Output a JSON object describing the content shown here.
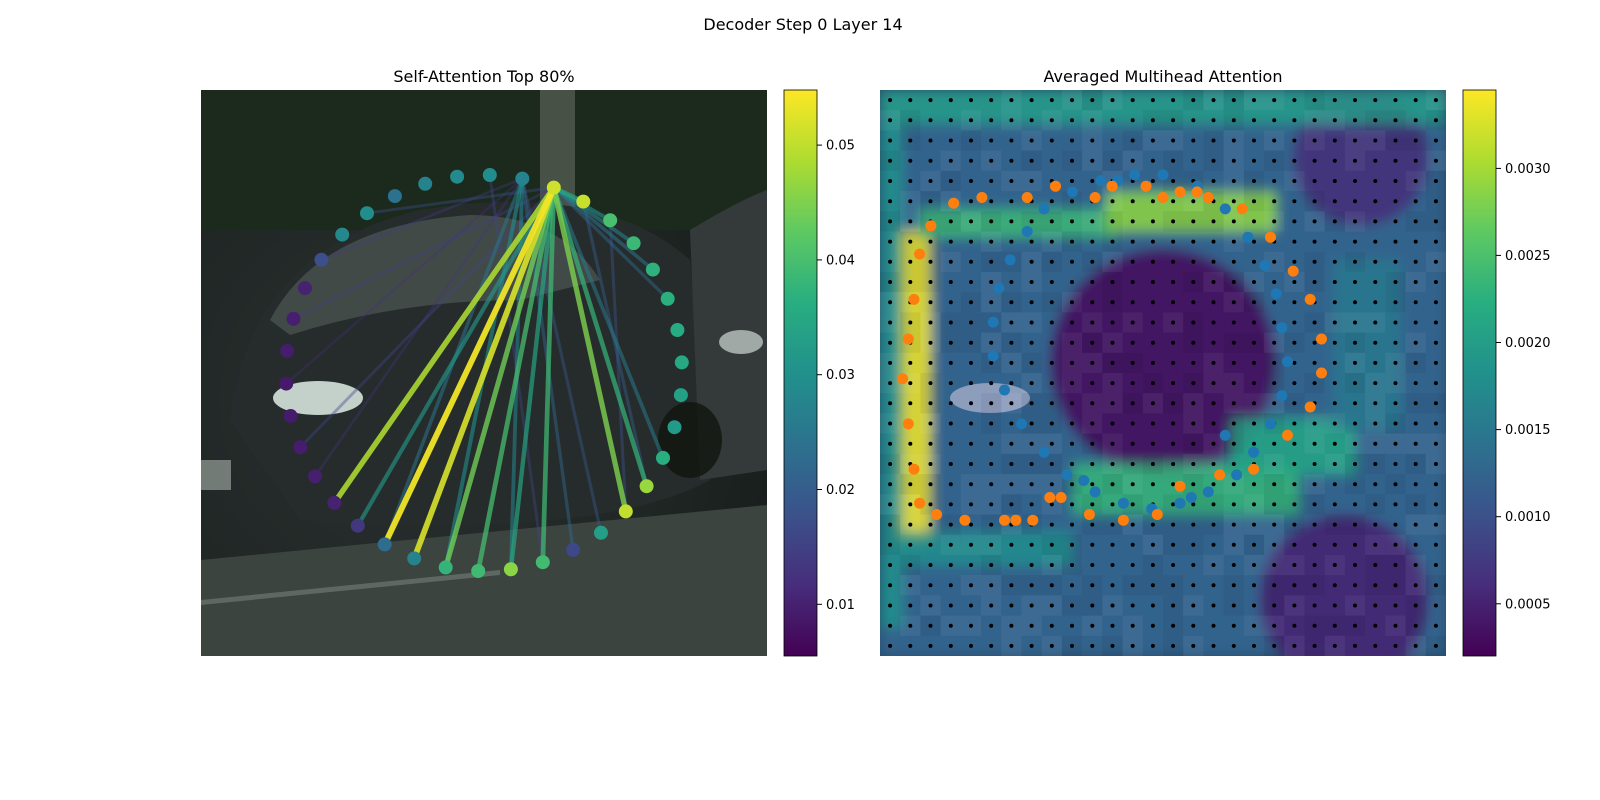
{
  "figure": {
    "suptitle": "Decoder Step 0 Layer 14"
  },
  "chart_data": [
    {
      "type": "scatter",
      "title": "Self-Attention Top 80%",
      "colormap": "viridis",
      "colorbar": {
        "range": [
          0.0055,
          0.0548
        ],
        "ticks": [
          0.01,
          0.02,
          0.03,
          0.04,
          0.05
        ],
        "tick_labels": [
          "0.01",
          "0.02",
          "0.03",
          "0.04",
          "0.05"
        ]
      },
      "background": "dark street photo with a parked car",
      "ring_points": {
        "center": [
          0.5,
          0.5
        ],
        "values": [
          0.0512,
          0.0508,
          0.0402,
          0.0386,
          0.0372,
          0.0368,
          0.0358,
          0.0352,
          0.0336,
          0.0322,
          0.0365,
          0.0472,
          0.0505,
          0.0332,
          0.0162,
          0.0395,
          0.0462,
          0.0392,
          0.0378,
          0.0275,
          0.0232,
          0.0135,
          0.0102,
          0.0098,
          0.0095,
          0.0092,
          0.009,
          0.0095,
          0.0098,
          0.0102,
          0.0175,
          0.0285,
          0.0295,
          0.024,
          0.0275,
          0.029,
          0.0295,
          0.0275
        ]
      },
      "attention_lines": [
        {
          "from": 0,
          "to": 22,
          "weight": 0.049
        },
        {
          "from": 0,
          "to": 20,
          "weight": 0.054
        },
        {
          "from": 0,
          "to": 19,
          "weight": 0.052
        },
        {
          "from": 0,
          "to": 15,
          "weight": 0.039
        },
        {
          "from": 0,
          "to": 18,
          "weight": 0.044
        },
        {
          "from": 0,
          "to": 17,
          "weight": 0.04
        },
        {
          "from": 0,
          "to": 12,
          "weight": 0.045
        },
        {
          "from": 0,
          "to": 11,
          "weight": 0.038
        },
        {
          "from": 0,
          "to": 16,
          "weight": 0.035
        },
        {
          "from": 0,
          "to": 21,
          "weight": 0.032
        },
        {
          "from": 0,
          "to": 1,
          "weight": 0.036
        },
        {
          "from": 0,
          "to": 2,
          "weight": 0.03
        },
        {
          "from": 0,
          "to": 3,
          "weight": 0.028
        },
        {
          "from": 0,
          "to": 4,
          "weight": 0.025
        },
        {
          "from": 0,
          "to": 5,
          "weight": 0.022
        },
        {
          "from": 0,
          "to": 10,
          "weight": 0.026
        },
        {
          "from": 37,
          "to": 18,
          "weight": 0.03
        },
        {
          "from": 37,
          "to": 16,
          "weight": 0.028
        },
        {
          "from": 37,
          "to": 20,
          "weight": 0.025
        },
        {
          "from": 37,
          "to": 14,
          "weight": 0.022
        },
        {
          "from": 37,
          "to": 13,
          "weight": 0.019
        },
        {
          "from": 1,
          "to": 11,
          "weight": 0.02
        },
        {
          "from": 2,
          "to": 12,
          "weight": 0.018
        },
        {
          "from": 0,
          "to": 24,
          "weight": 0.016
        },
        {
          "from": 0,
          "to": 28,
          "weight": 0.015
        },
        {
          "from": 0,
          "to": 32,
          "weight": 0.017
        },
        {
          "from": 37,
          "to": 23,
          "weight": 0.013
        },
        {
          "from": 37,
          "to": 26,
          "weight": 0.012
        },
        {
          "from": 37,
          "to": 30,
          "weight": 0.014
        },
        {
          "from": 36,
          "to": 15,
          "weight": 0.016
        }
      ]
    },
    {
      "type": "heatmap",
      "title": "Averaged Multihead Attention",
      "colormap": "viridis",
      "grid": [
        28,
        28
      ],
      "colorbar": {
        "range": [
          0.0002,
          0.00345
        ],
        "ticks": [
          0.0005,
          0.001,
          0.0015,
          0.002,
          0.0025,
          0.003
        ],
        "tick_labels": [
          "0.0005",
          "0.0010",
          "0.0015",
          "0.0020",
          "0.0025",
          "0.0030"
        ]
      },
      "reference_points": {
        "color": "#1f77b4",
        "points": [
          [
            0.39,
            0.16
          ],
          [
            0.45,
            0.15
          ],
          [
            0.5,
            0.15
          ],
          [
            0.56,
            0.17
          ],
          [
            0.61,
            0.21
          ],
          [
            0.65,
            0.26
          ],
          [
            0.68,
            0.31
          ],
          [
            0.7,
            0.36
          ],
          [
            0.71,
            0.42
          ],
          [
            0.72,
            0.48
          ],
          [
            0.71,
            0.54
          ],
          [
            0.69,
            0.59
          ],
          [
            0.66,
            0.64
          ],
          [
            0.63,
            0.68
          ],
          [
            0.58,
            0.71
          ],
          [
            0.53,
            0.73
          ],
          [
            0.48,
            0.74
          ],
          [
            0.43,
            0.73
          ],
          [
            0.38,
            0.71
          ],
          [
            0.33,
            0.68
          ],
          [
            0.29,
            0.64
          ],
          [
            0.25,
            0.59
          ],
          [
            0.22,
            0.53
          ],
          [
            0.2,
            0.47
          ],
          [
            0.2,
            0.41
          ],
          [
            0.21,
            0.35
          ],
          [
            0.23,
            0.3
          ],
          [
            0.26,
            0.25
          ],
          [
            0.29,
            0.21
          ],
          [
            0.34,
            0.18
          ],
          [
            0.42,
            0.16
          ],
          [
            0.61,
            0.61
          ],
          [
            0.36,
            0.69
          ],
          [
            0.55,
            0.72
          ]
        ]
      },
      "sampling_points": {
        "color": "#ff7f0e",
        "points": [
          [
            0.41,
            0.17
          ],
          [
            0.47,
            0.17
          ],
          [
            0.53,
            0.18
          ],
          [
            0.58,
            0.19
          ],
          [
            0.64,
            0.21
          ],
          [
            0.69,
            0.26
          ],
          [
            0.73,
            0.32
          ],
          [
            0.76,
            0.37
          ],
          [
            0.78,
            0.44
          ],
          [
            0.78,
            0.5
          ],
          [
            0.76,
            0.56
          ],
          [
            0.72,
            0.61
          ],
          [
            0.66,
            0.67
          ],
          [
            0.6,
            0.68
          ],
          [
            0.53,
            0.7
          ],
          [
            0.49,
            0.75
          ],
          [
            0.43,
            0.76
          ],
          [
            0.37,
            0.75
          ],
          [
            0.32,
            0.72
          ],
          [
            0.27,
            0.76
          ],
          [
            0.22,
            0.76
          ],
          [
            0.15,
            0.76
          ],
          [
            0.1,
            0.75
          ],
          [
            0.07,
            0.73
          ],
          [
            0.06,
            0.67
          ],
          [
            0.05,
            0.59
          ],
          [
            0.04,
            0.51
          ],
          [
            0.05,
            0.44
          ],
          [
            0.06,
            0.37
          ],
          [
            0.07,
            0.29
          ],
          [
            0.09,
            0.24
          ],
          [
            0.13,
            0.2
          ],
          [
            0.18,
            0.19
          ],
          [
            0.26,
            0.19
          ],
          [
            0.31,
            0.17
          ],
          [
            0.38,
            0.19
          ],
          [
            0.5,
            0.19
          ],
          [
            0.56,
            0.18
          ],
          [
            0.3,
            0.72
          ],
          [
            0.24,
            0.76
          ]
        ]
      },
      "hot_regions": [
        {
          "x": 0.03,
          "y": 0.25,
          "w": 0.06,
          "h": 0.55,
          "level": 0.0034
        },
        {
          "x": 0.07,
          "y": 0.21,
          "w": 0.35,
          "h": 0.05,
          "level": 0.0024
        },
        {
          "x": 0.4,
          "y": 0.18,
          "w": 0.3,
          "h": 0.07,
          "level": 0.0029
        },
        {
          "x": 0.34,
          "y": 0.66,
          "w": 0.4,
          "h": 0.09,
          "level": 0.00235
        },
        {
          "x": 0.62,
          "y": 0.58,
          "w": 0.22,
          "h": 0.1,
          "level": 0.0021
        },
        {
          "x": 0.04,
          "y": 0.78,
          "w": 0.3,
          "h": 0.06,
          "level": 0.0018
        },
        {
          "x": 0.0,
          "y": 0.0,
          "w": 1.0,
          "h": 0.06,
          "level": 0.002
        },
        {
          "x": 0.0,
          "y": 0.05,
          "w": 0.04,
          "h": 0.9,
          "level": 0.00185
        },
        {
          "x": 0.8,
          "y": 0.3,
          "w": 0.12,
          "h": 0.3,
          "level": 0.0015
        }
      ],
      "cold_regions": [
        {
          "cx": 0.5,
          "cy": 0.48,
          "r": 0.2,
          "level": 0.0003
        },
        {
          "cx": 0.85,
          "cy": 0.12,
          "r": 0.12,
          "level": 0.0006
        },
        {
          "cx": 0.82,
          "cy": 0.9,
          "r": 0.15,
          "level": 0.0005
        }
      ]
    }
  ]
}
